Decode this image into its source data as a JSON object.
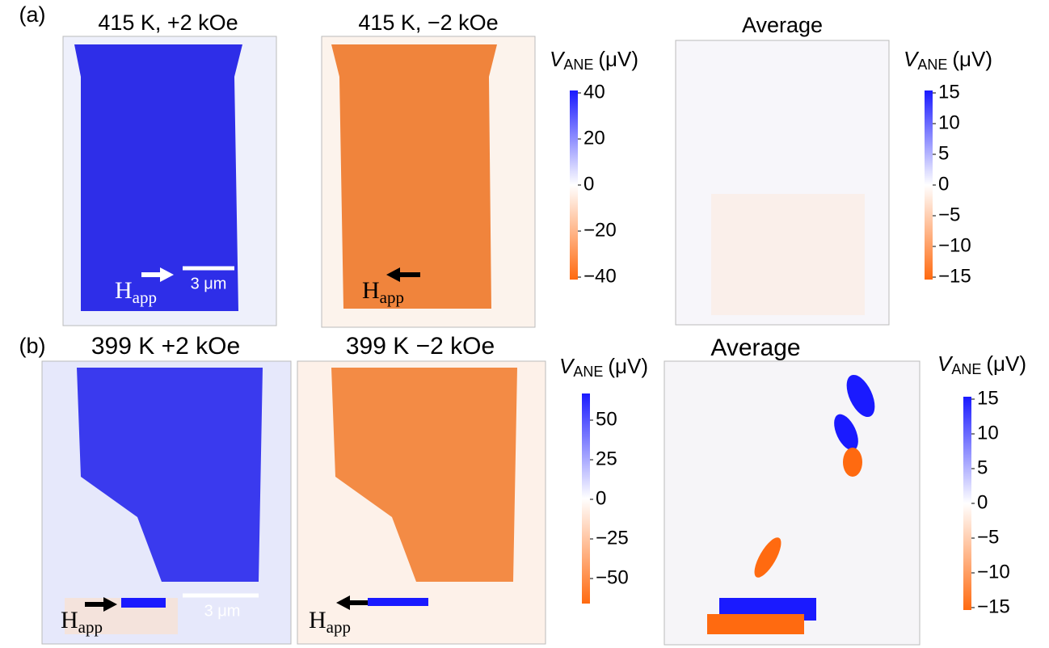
{
  "figure": {
    "panel_labels": [
      "(a)",
      "(b)"
    ],
    "row_a": {
      "titles": [
        "415 K, +2 kOe",
        "415 K, −2 kOe",
        "Average"
      ],
      "scale_bar": "3 μm",
      "field_label": {
        "symbol": "H",
        "subscript": "app"
      }
    },
    "row_b": {
      "titles": [
        "399 K +2 kOe",
        "399 K −2 kOe",
        "Average"
      ],
      "scale_bar": "3 μm",
      "field_label": {
        "symbol": "H",
        "subscript": "app"
      }
    },
    "colorbar_label": {
      "symbol": "V",
      "subscript": "ANE",
      "unit": "(μV)"
    },
    "colorbars": [
      {
        "ticks": [
          "40",
          "20",
          "0",
          "−20",
          "−40"
        ]
      },
      {
        "ticks": [
          "15",
          "10",
          "5",
          "0",
          "−5",
          "−10",
          "−15"
        ]
      },
      {
        "ticks": [
          "50",
          "25",
          "0",
          "−25",
          "−50"
        ]
      },
      {
        "ticks": [
          "15",
          "10",
          "5",
          "0",
          "−5",
          "−10",
          "−15"
        ]
      }
    ]
  }
}
